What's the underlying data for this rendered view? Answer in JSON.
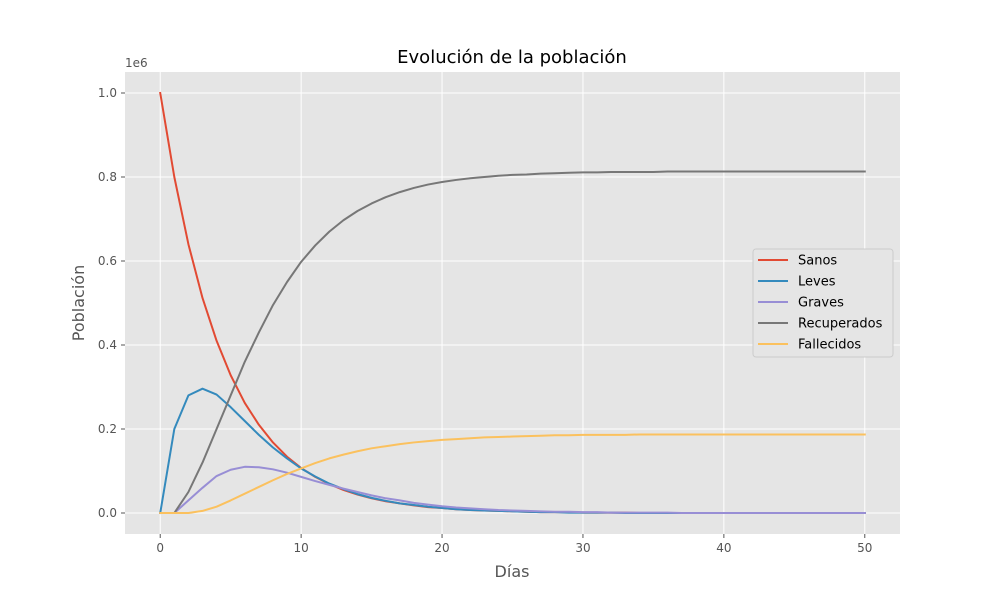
{
  "chart_data": {
    "type": "line",
    "title": "Evolución de la población",
    "xlabel": "Días",
    "ylabel": "Población",
    "y_offset_label": "1e6",
    "xlim": [
      -2.5,
      52.5
    ],
    "ylim": [
      -0.05,
      1.05
    ],
    "x_ticks": [
      0,
      10,
      20,
      30,
      40,
      50
    ],
    "x_tick_labels": [
      "0",
      "10",
      "20",
      "30",
      "40",
      "50"
    ],
    "y_ticks": [
      0.0,
      0.2,
      0.4,
      0.6,
      0.8,
      1.0
    ],
    "y_tick_labels": [
      "0.0",
      "0.2",
      "0.4",
      "0.6",
      "0.8",
      "1.0"
    ],
    "grid": true,
    "legend_position": "center-right",
    "background": "#e5e5e5",
    "x": [
      0,
      1,
      2,
      3,
      4,
      5,
      6,
      7,
      8,
      9,
      10,
      11,
      12,
      13,
      14,
      15,
      16,
      17,
      18,
      19,
      20,
      21,
      22,
      23,
      24,
      25,
      26,
      27,
      28,
      29,
      30,
      31,
      32,
      33,
      34,
      35,
      36,
      37,
      38,
      39,
      40,
      41,
      42,
      43,
      44,
      45,
      46,
      47,
      48,
      49,
      50
    ],
    "series": [
      {
        "name": "Sanos",
        "color": "#e24a33",
        "values": [
          1.0,
          0.8,
          0.64,
          0.512,
          0.41,
          0.328,
          0.262,
          0.21,
          0.168,
          0.134,
          0.107,
          0.086,
          0.069,
          0.055,
          0.044,
          0.035,
          0.028,
          0.023,
          0.018,
          0.014,
          0.012,
          0.009,
          0.007,
          0.006,
          0.005,
          0.004,
          0.003,
          0.002,
          0.002,
          0.002,
          0.001,
          0.001,
          0.001,
          0.001,
          0.0,
          0.0,
          0.0,
          0.0,
          0.0,
          0.0,
          0.0,
          0.0,
          0.0,
          0.0,
          0.0,
          0.0,
          0.0,
          0.0,
          0.0,
          0.0,
          0.0
        ]
      },
      {
        "name": "Leves",
        "color": "#348abd",
        "values": [
          0.0,
          0.2,
          0.28,
          0.296,
          0.282,
          0.252,
          0.219,
          0.186,
          0.156,
          0.13,
          0.106,
          0.087,
          0.07,
          0.057,
          0.045,
          0.036,
          0.029,
          0.023,
          0.019,
          0.015,
          0.012,
          0.009,
          0.007,
          0.006,
          0.005,
          0.004,
          0.003,
          0.002,
          0.002,
          0.001,
          0.001,
          0.001,
          0.001,
          0.0,
          0.0,
          0.0,
          0.0,
          0.0,
          0.0,
          0.0,
          0.0,
          0.0,
          0.0,
          0.0,
          0.0,
          0.0,
          0.0,
          0.0,
          0.0,
          0.0,
          0.0
        ]
      },
      {
        "name": "Graves",
        "color": "#988ed5",
        "values": [
          0.0,
          0.0,
          0.03,
          0.06,
          0.088,
          0.103,
          0.11,
          0.109,
          0.104,
          0.096,
          0.086,
          0.076,
          0.067,
          0.058,
          0.05,
          0.042,
          0.035,
          0.03,
          0.024,
          0.02,
          0.016,
          0.013,
          0.011,
          0.009,
          0.007,
          0.006,
          0.005,
          0.004,
          0.003,
          0.003,
          0.002,
          0.002,
          0.001,
          0.001,
          0.001,
          0.001,
          0.001,
          0.0,
          0.0,
          0.0,
          0.0,
          0.0,
          0.0,
          0.0,
          0.0,
          0.0,
          0.0,
          0.0,
          0.0,
          0.0,
          0.0
        ]
      },
      {
        "name": "Recuperados",
        "color": "#777777",
        "values": [
          0.0,
          0.0,
          0.05,
          0.12,
          0.2,
          0.28,
          0.36,
          0.43,
          0.495,
          0.55,
          0.598,
          0.637,
          0.67,
          0.697,
          0.719,
          0.737,
          0.752,
          0.764,
          0.774,
          0.782,
          0.788,
          0.793,
          0.797,
          0.8,
          0.803,
          0.805,
          0.806,
          0.808,
          0.809,
          0.81,
          0.811,
          0.811,
          0.812,
          0.812,
          0.812,
          0.812,
          0.813,
          0.813,
          0.813,
          0.813,
          0.813,
          0.813,
          0.813,
          0.813,
          0.813,
          0.813,
          0.813,
          0.813,
          0.813,
          0.813,
          0.813
        ]
      },
      {
        "name": "Fallecidos",
        "color": "#fbc15e",
        "values": [
          0.0,
          0.0,
          0.0,
          0.005,
          0.015,
          0.03,
          0.046,
          0.062,
          0.078,
          0.093,
          0.106,
          0.119,
          0.13,
          0.139,
          0.147,
          0.154,
          0.159,
          0.164,
          0.168,
          0.171,
          0.174,
          0.176,
          0.178,
          0.18,
          0.181,
          0.182,
          0.183,
          0.184,
          0.185,
          0.185,
          0.186,
          0.186,
          0.186,
          0.186,
          0.187,
          0.187,
          0.187,
          0.187,
          0.187,
          0.187,
          0.187,
          0.187,
          0.187,
          0.187,
          0.187,
          0.187,
          0.187,
          0.187,
          0.187,
          0.187,
          0.187
        ]
      }
    ]
  }
}
